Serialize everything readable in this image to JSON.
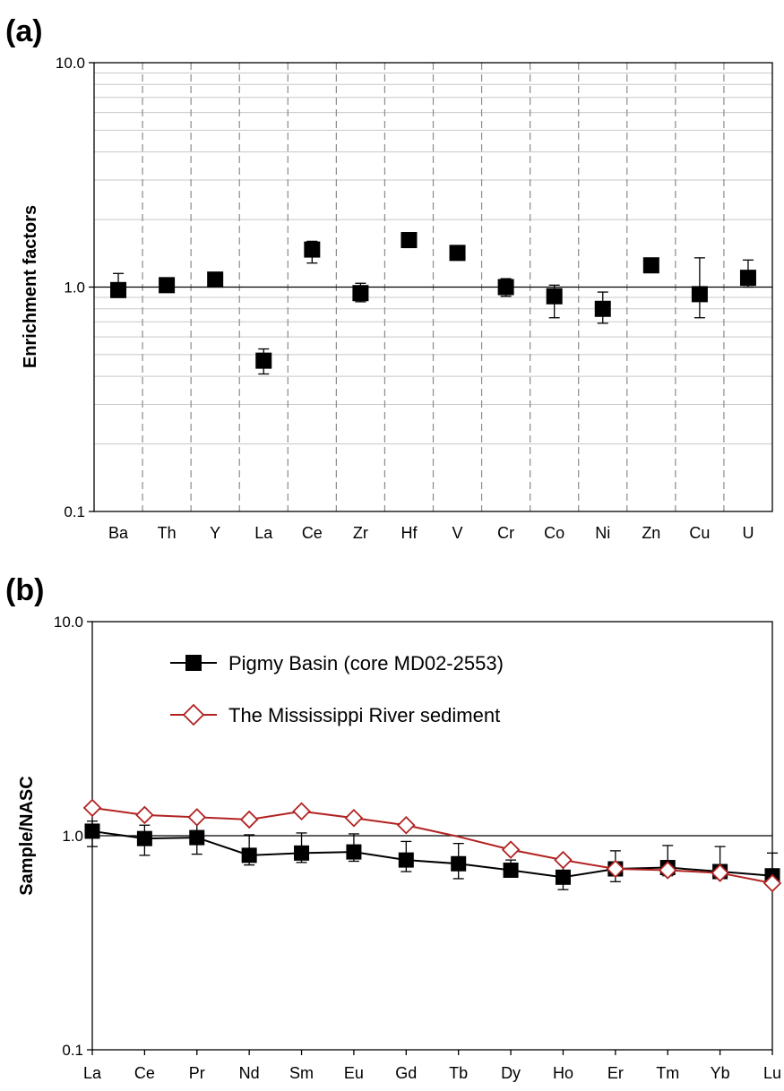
{
  "chart_data": [
    {
      "panel_label": "(a)",
      "type": "scatter",
      "ylabel": "Enrichment factors",
      "yscale": "log",
      "ylim": [
        0.1,
        10.0
      ],
      "yticks": [
        "0.1",
        "1.0",
        "10.0"
      ],
      "categories": [
        "Ba",
        "Th",
        "Y",
        "La",
        "Ce",
        "Zr",
        "Hf",
        "V",
        "Cr",
        "Co",
        "Ni",
        "Zn",
        "Cu",
        "U"
      ],
      "series": [
        {
          "values": [
            0.97,
            1.02,
            1.08,
            0.47,
            1.47,
            0.94,
            1.62,
            1.42,
            1.0,
            0.91,
            0.8,
            1.25,
            0.93,
            1.1
          ],
          "err_low": [
            0.9,
            0.98,
            1.04,
            0.41,
            1.28,
            0.86,
            1.5,
            1.38,
            0.91,
            0.73,
            0.69,
            1.22,
            0.73,
            1.0
          ],
          "err_high": [
            1.15,
            1.05,
            1.12,
            0.53,
            1.6,
            1.04,
            1.72,
            1.46,
            1.09,
            1.02,
            0.95,
            1.28,
            1.35,
            1.32
          ]
        }
      ],
      "grid": "horizontal log gridlines, dashed vertical separators",
      "reference_line": 1.0
    },
    {
      "panel_label": "(b)",
      "type": "line",
      "ylabel": "Sample/NASC",
      "yscale": "log",
      "ylim": [
        0.1,
        10.0
      ],
      "yticks": [
        "0.1",
        "1.0",
        "10.0"
      ],
      "categories": [
        "La",
        "Ce",
        "Pr",
        "Nd",
        "Sm",
        "Eu",
        "Gd",
        "Tb",
        "Dy",
        "Ho",
        "Er",
        "Tm",
        "Yb",
        "Lu"
      ],
      "legend_position": "top-center",
      "series": [
        {
          "name": "Pigmy Basin (core MD02-2553)",
          "color": "#000000",
          "marker": "square",
          "values": [
            1.05,
            0.97,
            0.98,
            0.81,
            0.83,
            0.84,
            0.77,
            0.74,
            0.69,
            0.64,
            0.7,
            0.71,
            0.68,
            0.65
          ],
          "err_low": [
            0.89,
            0.81,
            0.82,
            0.73,
            0.75,
            0.76,
            0.68,
            0.63,
            0.64,
            0.56,
            0.61,
            0.65,
            0.64,
            0.61
          ],
          "err_high": [
            1.17,
            1.12,
            1.19,
            1.01,
            1.03,
            1.02,
            0.94,
            0.92,
            0.77,
            0.76,
            0.85,
            0.9,
            0.89,
            0.83
          ]
        },
        {
          "name": "The Mississippi River sediment",
          "color": "#b22222",
          "marker": "diamond-open",
          "values": [
            1.35,
            1.25,
            1.22,
            1.19,
            1.3,
            1.21,
            1.12,
            0.99,
            0.86,
            0.77,
            0.7,
            0.69,
            0.67,
            0.6
          ]
        }
      ],
      "reference_line": 1.0
    }
  ]
}
